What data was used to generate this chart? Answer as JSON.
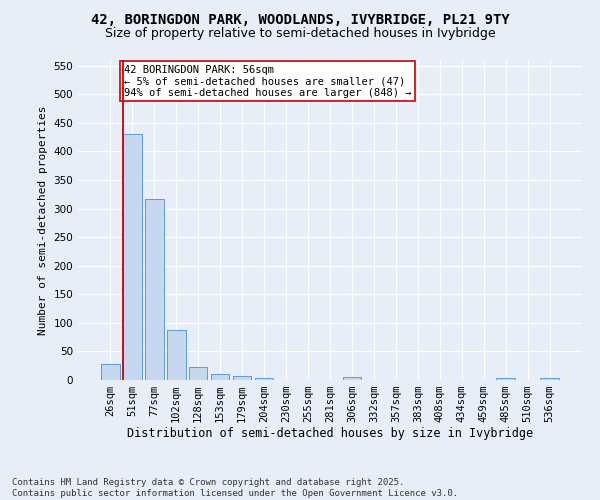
{
  "title": "42, BORINGDON PARK, WOODLANDS, IVYBRIDGE, PL21 9TY",
  "subtitle": "Size of property relative to semi-detached houses in Ivybridge",
  "xlabel": "Distribution of semi-detached houses by size in Ivybridge",
  "ylabel": "Number of semi-detached properties",
  "categories": [
    "26sqm",
    "51sqm",
    "77sqm",
    "102sqm",
    "128sqm",
    "153sqm",
    "179sqm",
    "204sqm",
    "230sqm",
    "255sqm",
    "281sqm",
    "306sqm",
    "332sqm",
    "357sqm",
    "383sqm",
    "408sqm",
    "434sqm",
    "459sqm",
    "485sqm",
    "510sqm",
    "536sqm"
  ],
  "values": [
    28,
    430,
    317,
    87,
    23,
    11,
    7,
    4,
    0,
    0,
    0,
    5,
    0,
    0,
    0,
    0,
    0,
    0,
    4,
    0,
    4
  ],
  "bar_color": "#c5d8f0",
  "bar_edge_color": "#5b9bd5",
  "vline_color": "#cc0000",
  "vline_x_index": 1,
  "annotation_text": "42 BORINGDON PARK: 56sqm\n← 5% of semi-detached houses are smaller (47)\n94% of semi-detached houses are larger (848) →",
  "annotation_box_color": "#ffffff",
  "annotation_box_edge_color": "#cc0000",
  "ylim": [
    0,
    560
  ],
  "yticks": [
    0,
    50,
    100,
    150,
    200,
    250,
    300,
    350,
    400,
    450,
    500,
    550
  ],
  "footnote": "Contains HM Land Registry data © Crown copyright and database right 2025.\nContains public sector information licensed under the Open Government Licence v3.0.",
  "bg_color": "#e8eef8",
  "plot_bg_color": "#e8eef8",
  "grid_color": "#ffffff",
  "title_fontsize": 10,
  "subtitle_fontsize": 9,
  "xlabel_fontsize": 8.5,
  "ylabel_fontsize": 8,
  "tick_fontsize": 7.5,
  "footnote_fontsize": 6.5,
  "annotation_fontsize": 7.5
}
